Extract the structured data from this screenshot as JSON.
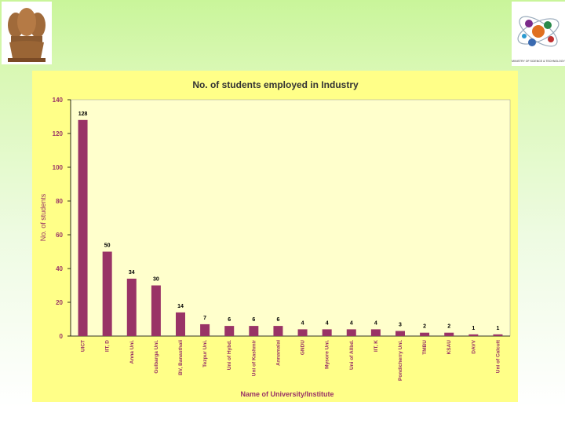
{
  "logo": {
    "caption": "MINISTRY OF SCIENCE & TECHNOLOGY"
  },
  "chart_data": {
    "type": "bar",
    "title": "No. of students employed in Industry",
    "xlabel": "Name of University/Institute",
    "ylabel": "No. of students",
    "ylim": [
      0,
      140
    ],
    "yticks": [
      0,
      20,
      40,
      60,
      80,
      100,
      120,
      140
    ],
    "grid": false,
    "colors": {
      "bar": "#993366",
      "plot_area": "#ffffcc",
      "panel": "#ffff88",
      "title": "#333333"
    },
    "categories": [
      "UICT",
      "IIT, D",
      "Anna Uni.",
      "Gulbarga Uni.",
      "BV, Banasthali",
      "Tezpur Uni.",
      "Uni of Hybd.",
      "Uni of Kashmir",
      "Annamalai",
      "GNDU",
      "Mysore Uni.",
      "Uni of Allbd.",
      "IIT, K",
      "Pondicherry Uni.",
      "TMBU",
      "KSAU",
      "DAVV",
      "Uni of Calcutt"
    ],
    "values": [
      128,
      50,
      34,
      30,
      14,
      7,
      6,
      6,
      6,
      4,
      4,
      4,
      4,
      3,
      2,
      2,
      1,
      1
    ]
  }
}
